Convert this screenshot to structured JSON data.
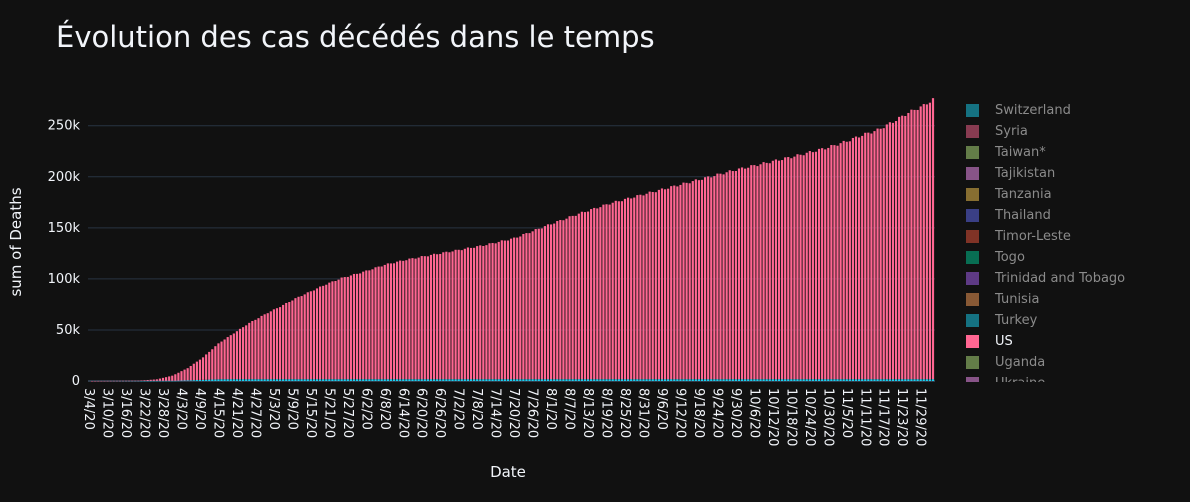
{
  "chart_data": {
    "type": "bar",
    "title": "Évolution des cas décédés dans le temps",
    "xlabel": "Date",
    "ylabel": "sum of Deaths",
    "x_range": [
      "2020-03-04",
      "2020-12-03"
    ],
    "ylim": [
      0,
      285000
    ],
    "y_ticks": [
      0,
      50000,
      100000,
      150000,
      200000,
      250000
    ],
    "y_tick_labels": [
      "0",
      "50k",
      "100k",
      "150k",
      "200k",
      "250k"
    ],
    "x_ticks": [
      "2020-03-04",
      "2020-03-10",
      "2020-03-16",
      "2020-03-22",
      "2020-03-28",
      "2020-04-03",
      "2020-04-09",
      "2020-04-15",
      "2020-04-21",
      "2020-04-27",
      "2020-05-03",
      "2020-05-09",
      "2020-05-15",
      "2020-05-21",
      "2020-05-27",
      "2020-06-02",
      "2020-06-08",
      "2020-06-14",
      "2020-06-20",
      "2020-06-26",
      "2020-07-02",
      "2020-07-08",
      "2020-07-14",
      "2020-07-20",
      "2020-07-26",
      "2020-08-01",
      "2020-08-07",
      "2020-08-13",
      "2020-08-19",
      "2020-08-25",
      "2020-08-31",
      "2020-09-06",
      "2020-09-12",
      "2020-09-18",
      "2020-09-24",
      "2020-09-30",
      "2020-10-06",
      "2020-10-12",
      "2020-10-18",
      "2020-10-24",
      "2020-10-30",
      "2020-11-05",
      "2020-11-11",
      "2020-11-17",
      "2020-11-23",
      "2020-11-29"
    ],
    "x_tick_labels": [
      "3/4/20",
      "3/10/20",
      "3/16/20",
      "3/22/20",
      "3/28/20",
      "4/3/20",
      "4/9/20",
      "4/15/20",
      "4/21/20",
      "4/27/20",
      "5/3/20",
      "5/9/20",
      "5/15/20",
      "5/21/20",
      "5/27/20",
      "6/2/20",
      "6/8/20",
      "6/14/20",
      "6/20/20",
      "6/26/20",
      "7/2/20",
      "7/8/20",
      "7/14/20",
      "7/20/20",
      "7/26/20",
      "8/1/20",
      "8/7/20",
      "8/13/20",
      "8/19/20",
      "8/25/20",
      "8/31/20",
      "9/6/20",
      "9/12/20",
      "9/18/20",
      "9/24/20",
      "9/30/20",
      "10/6/20",
      "10/12/20",
      "10/18/20",
      "10/24/20",
      "10/30/20",
      "11/5/20",
      "11/11/20",
      "11/17/20",
      "11/23/20",
      "11/29/20"
    ],
    "grid": true,
    "legend_placement": "right",
    "stacked": true,
    "series": [
      {
        "name": "US",
        "color": "#FF6692",
        "x": [
          "2020-03-04",
          "2020-03-20",
          "2020-03-26",
          "2020-03-31",
          "2020-04-05",
          "2020-04-10",
          "2020-04-15",
          "2020-04-20",
          "2020-04-25",
          "2020-05-01",
          "2020-05-05",
          "2020-05-10",
          "2020-05-15",
          "2020-05-20",
          "2020-05-25",
          "2020-06-01",
          "2020-06-08",
          "2020-06-15",
          "2020-06-22",
          "2020-07-01",
          "2020-07-10",
          "2020-07-20",
          "2020-07-26",
          "2020-08-01",
          "2020-08-10",
          "2020-08-20",
          "2020-08-31",
          "2020-09-10",
          "2020-09-20",
          "2020-09-30",
          "2020-10-10",
          "2020-10-20",
          "2020-10-30",
          "2020-11-05",
          "2020-11-10",
          "2020-11-15",
          "2020-11-20",
          "2020-11-25",
          "2020-11-30",
          "2020-12-03"
        ],
        "y": [
          0,
          200,
          1500,
          5000,
          12000,
          22000,
          35000,
          45000,
          55000,
          65000,
          71000,
          79000,
          86000,
          93000,
          99000,
          105000,
          112000,
          117000,
          121000,
          126000,
          131000,
          138000,
          145000,
          152000,
          162000,
          172000,
          181000,
          189000,
          197000,
          205000,
          212000,
          219000,
          227000,
          233000,
          239000,
          244000,
          252000,
          261000,
          268000,
          274000
        ]
      },
      {
        "name": "Turkey",
        "color": "#19D3F3",
        "x": [
          "2020-03-04",
          "2020-04-01",
          "2020-05-01",
          "2020-06-01",
          "2020-07-01",
          "2020-08-01",
          "2020-09-01",
          "2020-10-01",
          "2020-11-01",
          "2020-12-03"
        ],
        "y": [
          0,
          200,
          3400,
          4600,
          5200,
          5800,
          6500,
          8400,
          10400,
          14000
        ]
      }
    ],
    "legend": [
      {
        "name": "Switzerland",
        "color": "#19D3F3"
      },
      {
        "name": "Syria",
        "color": "#FF6692"
      },
      {
        "name": "Taiwan*",
        "color": "#B6E880"
      },
      {
        "name": "Tajikistan",
        "color": "#FF97FF"
      },
      {
        "name": "Tanzania",
        "color": "#FECB52"
      },
      {
        "name": "Thailand",
        "color": "#636EFA"
      },
      {
        "name": "Timor-Leste",
        "color": "#EF553B"
      },
      {
        "name": "Togo",
        "color": "#00CC96"
      },
      {
        "name": "Trinidad and Tobago",
        "color": "#AB63FA"
      },
      {
        "name": "Tunisia",
        "color": "#FFA15A"
      },
      {
        "name": "Turkey",
        "color": "#19D3F3"
      },
      {
        "name": "US",
        "color": "#FF6692",
        "active": true
      },
      {
        "name": "Uganda",
        "color": "#B6E880"
      },
      {
        "name": "Ukraine",
        "color": "#FF97FF"
      }
    ]
  }
}
